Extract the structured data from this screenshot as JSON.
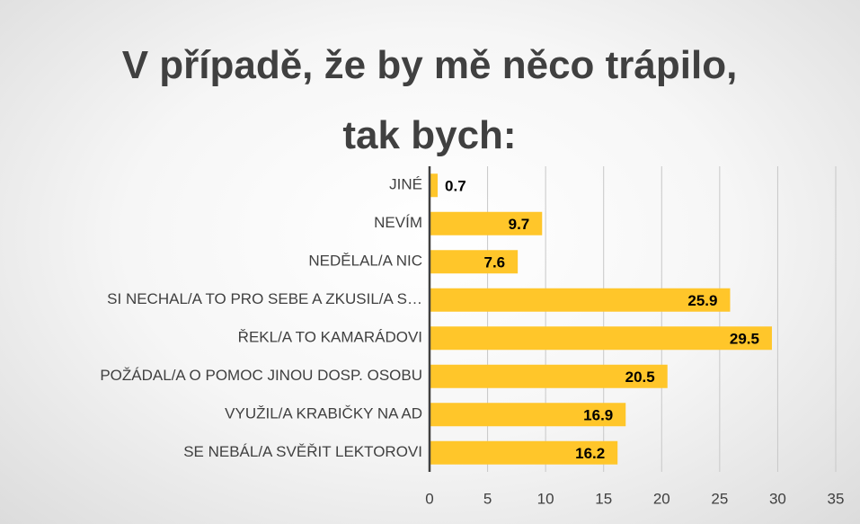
{
  "chart_data": {
    "type": "bar",
    "orientation": "horizontal",
    "title": "V případě, že by mě něco trápilo, tak bych:",
    "categories": [
      "JINÉ",
      "NEVÍM",
      "NEDĚLAL/A NIC",
      "SI NECHAL/A TO PRO SEBE A ZKUSIL/A S…",
      "ŘEKL/A TO KAMARÁDOVI",
      "POŽÁDAL/A O POMOC JINOU DOSP. OSOBU",
      "VYUŽIL/A KRABIČKY NA AD",
      "SE NEBÁL/A SVĚŘIT LEKTOROVI"
    ],
    "values": [
      0.7,
      9.7,
      7.6,
      25.9,
      29.5,
      20.5,
      16.9,
      16.2
    ],
    "color": "#ffc62a",
    "xlim": [
      0,
      35
    ],
    "xticks": [
      0,
      5,
      10,
      15,
      20,
      25,
      30,
      35
    ],
    "grid": true
  }
}
